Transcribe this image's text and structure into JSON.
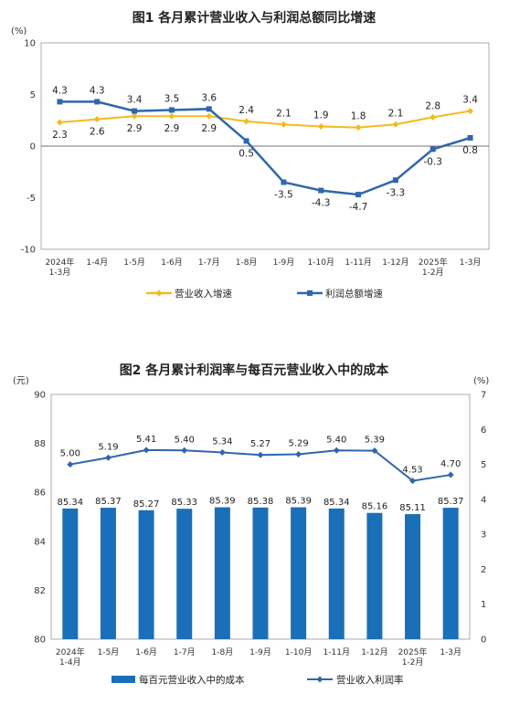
{
  "chart_data": [
    {
      "type": "line",
      "title": "图1  各月累计营业收入与利润总额同比增速",
      "y_unit": "(%)",
      "ylim": [
        -10,
        10
      ],
      "yticks": [
        "10",
        "5",
        "0",
        "-5",
        "-10"
      ],
      "categories": [
        [
          "2024年",
          "1-3月"
        ],
        [
          "1-4月"
        ],
        [
          "1-5月"
        ],
        [
          "1-6月"
        ],
        [
          "1-7月"
        ],
        [
          "1-8月"
        ],
        [
          "1-9月"
        ],
        [
          "1-10月"
        ],
        [
          "1-11月"
        ],
        [
          "1-12月"
        ],
        [
          "2025年",
          "1-2月"
        ],
        [
          "1-3月"
        ]
      ],
      "series": [
        {
          "name": "营业收入增速",
          "color": "#f2bb1c",
          "values": [
            2.3,
            2.6,
            2.9,
            2.9,
            2.9,
            2.4,
            2.1,
            1.9,
            1.8,
            2.1,
            2.8,
            3.4
          ],
          "labels": [
            "2.3",
            "2.6",
            "2.9",
            "2.9",
            "2.9",
            "2.4",
            "2.1",
            "1.9",
            "1.8",
            "2.1",
            "2.8",
            "3.4"
          ]
        },
        {
          "name": "利润总额增速",
          "color": "#2f66ac",
          "values": [
            4.3,
            4.3,
            3.4,
            3.5,
            3.6,
            0.5,
            -3.5,
            -4.3,
            -4.7,
            -3.3,
            -0.3,
            0.8
          ],
          "labels": [
            "4.3",
            "4.3",
            "3.4",
            "3.5",
            "3.6",
            "0.5",
            "-3.5",
            "-4.3",
            "-4.7",
            "-3.3",
            "-0.3",
            "0.8"
          ]
        }
      ]
    },
    {
      "type": "bar",
      "title": "图2  各月累计利润率与每百元营业收入中的成本",
      "left_unit": "(元)",
      "right_unit": "(%)",
      "ylim_left": [
        80,
        90
      ],
      "yticks_left": [
        "90",
        "88",
        "86",
        "84",
        "82",
        "80"
      ],
      "ylim_right": [
        0,
        7
      ],
      "yticks_right": [
        "7",
        "6",
        "5",
        "4",
        "3",
        "2",
        "1",
        "0"
      ],
      "categories": [
        [
          "2024年",
          "1-4月"
        ],
        [
          "1-5月"
        ],
        [
          "1-6月"
        ],
        [
          "1-7月"
        ],
        [
          "1-8月"
        ],
        [
          "1-9月"
        ],
        [
          "1-10月"
        ],
        [
          "1-11月"
        ],
        [
          "1-12月"
        ],
        [
          "2025年",
          "1-2月"
        ],
        [
          "1-3月"
        ]
      ],
      "series": [
        {
          "name": "每百元营业收入中的成本",
          "type": "bar",
          "axis": "left",
          "color": "#1a6fb9",
          "values": [
            85.34,
            85.37,
            85.27,
            85.33,
            85.39,
            85.38,
            85.39,
            85.34,
            85.16,
            85.11,
            85.37
          ],
          "labels": [
            "85.34",
            "85.37",
            "85.27",
            "85.33",
            "85.39",
            "85.38",
            "85.39",
            "85.34",
            "85.16",
            "85.11",
            "85.37"
          ]
        },
        {
          "name": "营业收入利润率",
          "type": "line",
          "axis": "right",
          "color": "#2f66ac",
          "values": [
            5.0,
            5.19,
            5.41,
            5.4,
            5.34,
            5.27,
            5.29,
            5.4,
            5.39,
            4.53,
            4.7
          ],
          "labels": [
            "5.00",
            "5.19",
            "5.41",
            "5.40",
            "5.34",
            "5.27",
            "5.29",
            "5.40",
            "5.39",
            "4.53",
            "4.70"
          ]
        }
      ]
    }
  ]
}
